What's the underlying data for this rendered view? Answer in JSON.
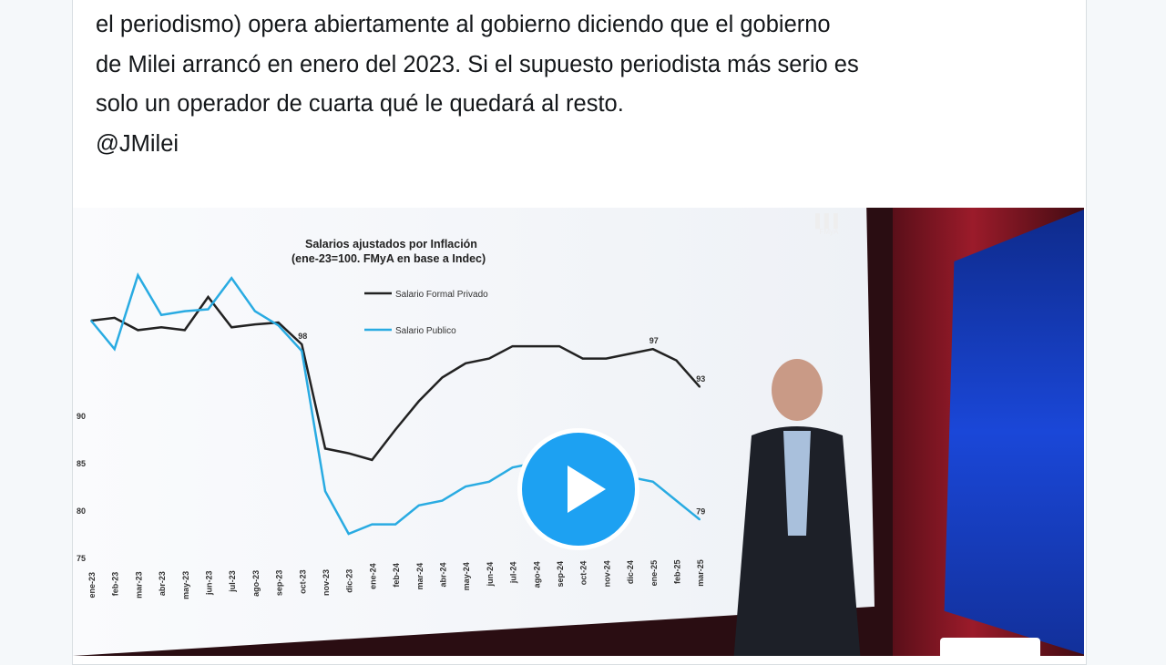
{
  "tweet": {
    "lines": [
      "el periodismo) opera abiertamente al gobierno diciendo que el gobierno",
      "de Milei arrancó en enero del 2023. Si el supuesto periodista más serio es",
      "solo un operador de cuarta qué le quedará al resto.",
      "@JMilei"
    ]
  },
  "video": {
    "play_icon": "play-icon",
    "logo": "FMyA",
    "accent": "#1da1f2",
    "chart": {
      "type": "line",
      "title": "Salarios ajustados por Inflación",
      "subtitle": "(ene-23=100. FMyA en base a Indec)",
      "y_ticks": [
        "75",
        "80",
        "85",
        "90"
      ],
      "ylim": [
        75,
        106
      ],
      "categories": [
        "ene-23",
        "feb-23",
        "mar-23",
        "abr-23",
        "may-23",
        "jun-23",
        "jul-23",
        "ago-23",
        "sep-23",
        "oct-23",
        "nov-23",
        "dic-23",
        "ene-24",
        "feb-24",
        "mar-24",
        "abr-24",
        "may-24",
        "jun-24",
        "jul-24",
        "ago-24",
        "sep-24",
        "oct-24",
        "nov-24",
        "dic-24",
        "ene-25",
        "feb-25",
        "mar-25"
      ],
      "series": [
        {
          "name": "Salario Formal Privado",
          "color": "#222222",
          "values": [
            100,
            100.3,
            99,
            99.3,
            99,
            102.5,
            99.3,
            99.6,
            99.8,
            97.5,
            86.5,
            86,
            85.3,
            88.5,
            91.5,
            94,
            95.5,
            96,
            97.3,
            97.3,
            97.3,
            96,
            96,
            96.5,
            97,
            95.8,
            93
          ],
          "labels": {
            "9": "98",
            "24": "97",
            "26": "93"
          }
        },
        {
          "name": "Salario Publico",
          "color": "#29abe2",
          "values": [
            100,
            97,
            104.8,
            100.6,
            101,
            101.2,
            104.5,
            101,
            99.5,
            96.8,
            82,
            77.5,
            78.5,
            78.5,
            80.5,
            81,
            82.5,
            83,
            84.5,
            85,
            84,
            84,
            83,
            83.5,
            83,
            81,
            79
          ],
          "labels": {
            "26": "79"
          }
        }
      ]
    }
  }
}
